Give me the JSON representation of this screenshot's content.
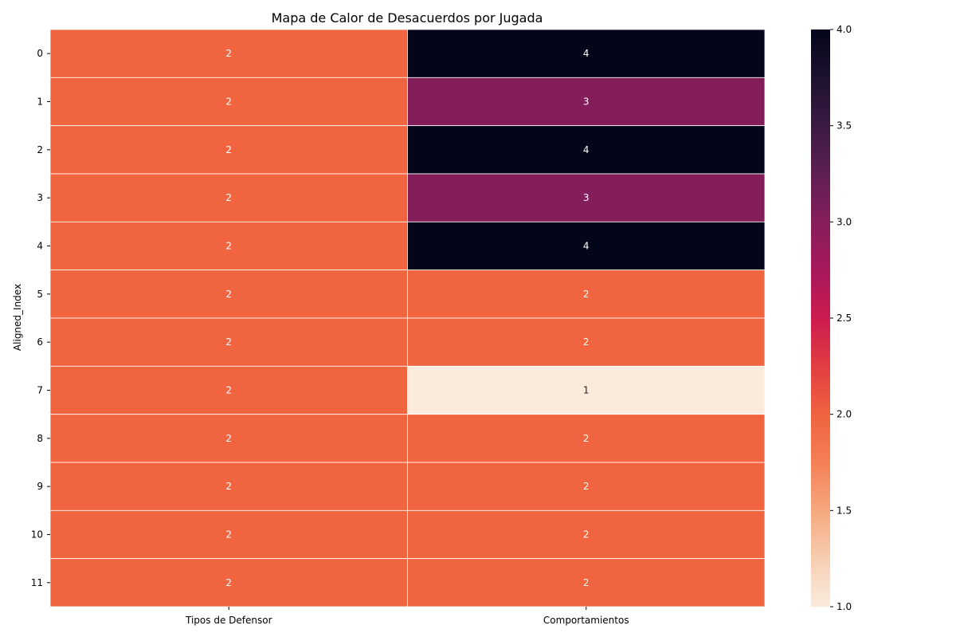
{
  "chart_data": {
    "type": "heatmap",
    "title": "Mapa de Calor de Desacuerdos por Jugada",
    "xlabel": "",
    "ylabel": "Aligned_Index",
    "x_categories": [
      "Tipos de Defensor",
      "Comportamientos"
    ],
    "y_categories": [
      "0",
      "1",
      "2",
      "3",
      "4",
      "5",
      "6",
      "7",
      "8",
      "9",
      "10",
      "11"
    ],
    "values": [
      [
        2,
        4
      ],
      [
        2,
        3
      ],
      [
        2,
        4
      ],
      [
        2,
        3
      ],
      [
        2,
        4
      ],
      [
        2,
        2
      ],
      [
        2,
        2
      ],
      [
        2,
        1
      ],
      [
        2,
        2
      ],
      [
        2,
        2
      ],
      [
        2,
        2
      ],
      [
        2,
        2
      ]
    ],
    "annotations": true,
    "colorbar": {
      "range": [
        1.0,
        4.0
      ],
      "ticks": [
        "1.0",
        "1.5",
        "2.0",
        "2.5",
        "3.0",
        "3.5",
        "4.0"
      ],
      "colormap": "rocket_r",
      "colors": {
        "1": "#faebdd",
        "2": "#f0643f",
        "3": "#841e5a",
        "4": "#03051a"
      }
    },
    "grid": true
  }
}
